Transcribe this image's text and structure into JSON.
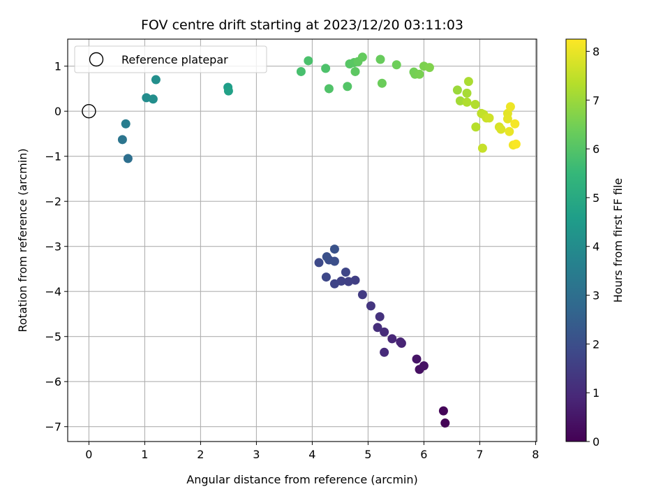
{
  "chart_data": {
    "type": "scatter",
    "title": "FOV centre drift starting at 2023/12/20 03:11:03",
    "xlabel": "Angular distance from reference (arcmin)",
    "ylabel": "Rotation from reference (arcmin)",
    "xlim": [
      -0.38,
      8.02
    ],
    "ylim": [
      -7.33,
      1.6
    ],
    "xticks": [
      "0",
      "1",
      "2",
      "3",
      "4",
      "5",
      "6",
      "7",
      "8"
    ],
    "yticks": [
      "−7",
      "−6",
      "−5",
      "−4",
      "−3",
      "−2",
      "−1",
      "0",
      "1"
    ],
    "grid": true,
    "legend": {
      "position": "upper-left",
      "entries": [
        "Reference platepar"
      ]
    },
    "reference_point": {
      "x": 0,
      "y": 0
    },
    "colorbar": {
      "label": "Hours from first FF file",
      "range": [
        0,
        8.25
      ],
      "ticks": [
        "0",
        "1",
        "2",
        "3",
        "4",
        "5",
        "6",
        "7",
        "8"
      ],
      "colormap": [
        "#440154",
        "#482878",
        "#3e4989",
        "#31688e",
        "#26828e",
        "#1f9e89",
        "#35b779",
        "#6ece58",
        "#b5de2b",
        "#fde725"
      ]
    },
    "points": [
      {
        "x": 6.38,
        "y": -6.92,
        "t": 0.05
      },
      {
        "x": 6.35,
        "y": -6.65,
        "t": 0.1
      },
      {
        "x": 5.92,
        "y": -5.73,
        "t": 0.35
      },
      {
        "x": 6.0,
        "y": -5.65,
        "t": 0.4
      },
      {
        "x": 5.87,
        "y": -5.5,
        "t": 0.45
      },
      {
        "x": 5.6,
        "y": -5.15,
        "t": 0.8
      },
      {
        "x": 5.58,
        "y": -5.12,
        "t": 0.85
      },
      {
        "x": 5.43,
        "y": -5.05,
        "t": 0.9
      },
      {
        "x": 5.29,
        "y": -5.35,
        "t": 1.0
      },
      {
        "x": 5.29,
        "y": -4.9,
        "t": 1.05
      },
      {
        "x": 5.17,
        "y": -4.8,
        "t": 1.1
      },
      {
        "x": 5.21,
        "y": -4.56,
        "t": 1.2
      },
      {
        "x": 5.05,
        "y": -4.32,
        "t": 1.3
      },
      {
        "x": 4.9,
        "y": -4.07,
        "t": 1.45
      },
      {
        "x": 4.77,
        "y": -3.75,
        "t": 1.55
      },
      {
        "x": 4.65,
        "y": -3.78,
        "t": 1.6
      },
      {
        "x": 4.52,
        "y": -3.77,
        "t": 1.65
      },
      {
        "x": 4.4,
        "y": -3.83,
        "t": 1.7
      },
      {
        "x": 4.6,
        "y": -3.57,
        "t": 1.75
      },
      {
        "x": 4.25,
        "y": -3.68,
        "t": 1.8
      },
      {
        "x": 4.12,
        "y": -3.36,
        "t": 1.85
      },
      {
        "x": 4.3,
        "y": -3.3,
        "t": 1.95
      },
      {
        "x": 4.4,
        "y": -3.33,
        "t": 2.0
      },
      {
        "x": 4.26,
        "y": -3.23,
        "t": 2.05
      },
      {
        "x": 4.4,
        "y": -3.06,
        "t": 2.1
      },
      {
        "x": 0.7,
        "y": -1.05,
        "t": 3.0
      },
      {
        "x": 0.6,
        "y": -0.63,
        "t": 3.2
      },
      {
        "x": 0.66,
        "y": -0.28,
        "t": 3.5
      },
      {
        "x": 1.03,
        "y": 0.3,
        "t": 4.0
      },
      {
        "x": 1.15,
        "y": 0.27,
        "t": 4.05
      },
      {
        "x": 1.2,
        "y": 0.7,
        "t": 4.1
      },
      {
        "x": 2.49,
        "y": 0.53,
        "t": 4.6
      },
      {
        "x": 2.5,
        "y": 0.45,
        "t": 4.7
      },
      {
        "x": 3.8,
        "y": 0.88,
        "t": 5.8
      },
      {
        "x": 3.93,
        "y": 1.12,
        "t": 5.85
      },
      {
        "x": 4.24,
        "y": 0.95,
        "t": 5.9
      },
      {
        "x": 4.3,
        "y": 0.5,
        "t": 5.95
      },
      {
        "x": 4.63,
        "y": 0.55,
        "t": 6.0
      },
      {
        "x": 4.67,
        "y": 1.05,
        "t": 6.05
      },
      {
        "x": 4.75,
        "y": 1.08,
        "t": 6.1
      },
      {
        "x": 4.77,
        "y": 0.88,
        "t": 6.15
      },
      {
        "x": 4.82,
        "y": 1.1,
        "t": 6.2
      },
      {
        "x": 4.9,
        "y": 1.2,
        "t": 6.25
      },
      {
        "x": 5.22,
        "y": 1.15,
        "t": 6.3
      },
      {
        "x": 5.25,
        "y": 0.62,
        "t": 6.35
      },
      {
        "x": 5.51,
        "y": 1.03,
        "t": 6.4
      },
      {
        "x": 5.82,
        "y": 0.87,
        "t": 6.45
      },
      {
        "x": 5.84,
        "y": 0.82,
        "t": 6.5
      },
      {
        "x": 5.92,
        "y": 0.82,
        "t": 6.55
      },
      {
        "x": 6.0,
        "y": 1.0,
        "t": 6.6
      },
      {
        "x": 6.1,
        "y": 0.97,
        "t": 6.65
      },
      {
        "x": 6.6,
        "y": 0.47,
        "t": 7.0
      },
      {
        "x": 6.65,
        "y": 0.23,
        "t": 7.1
      },
      {
        "x": 6.77,
        "y": 0.4,
        "t": 7.15
      },
      {
        "x": 6.8,
        "y": 0.66,
        "t": 7.2
      },
      {
        "x": 6.77,
        "y": 0.2,
        "t": 7.25
      },
      {
        "x": 6.92,
        "y": 0.15,
        "t": 7.3
      },
      {
        "x": 6.93,
        "y": -0.35,
        "t": 7.35
      },
      {
        "x": 7.03,
        "y": -0.05,
        "t": 7.45
      },
      {
        "x": 7.07,
        "y": -0.07,
        "t": 7.5
      },
      {
        "x": 7.05,
        "y": -0.82,
        "t": 7.55
      },
      {
        "x": 7.12,
        "y": -0.15,
        "t": 7.6
      },
      {
        "x": 7.17,
        "y": -0.15,
        "t": 7.65
      },
      {
        "x": 7.35,
        "y": -0.35,
        "t": 7.75
      },
      {
        "x": 7.38,
        "y": -0.4,
        "t": 7.8
      },
      {
        "x": 7.5,
        "y": -0.05,
        "t": 7.9
      },
      {
        "x": 7.5,
        "y": -0.17,
        "t": 7.95
      },
      {
        "x": 7.53,
        "y": -0.45,
        "t": 8.0
      },
      {
        "x": 7.55,
        "y": 0.1,
        "t": 8.05
      },
      {
        "x": 7.6,
        "y": -0.75,
        "t": 8.1
      },
      {
        "x": 7.63,
        "y": -0.28,
        "t": 8.15
      },
      {
        "x": 7.65,
        "y": -0.73,
        "t": 8.2
      }
    ]
  }
}
